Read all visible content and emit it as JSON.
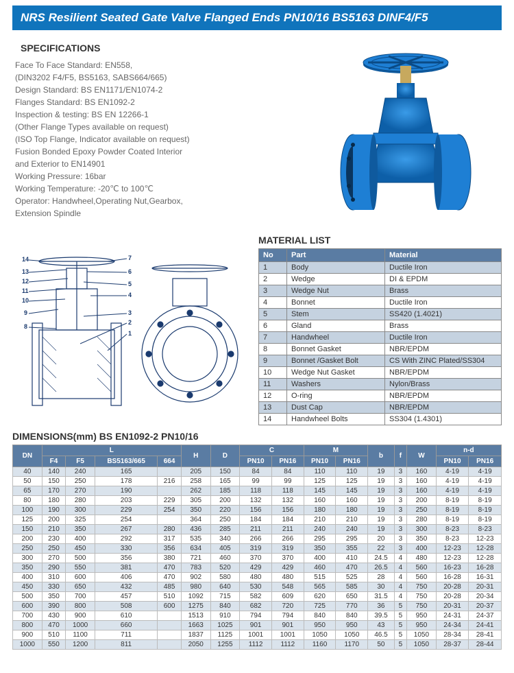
{
  "title": "NRS Resilient Seated Gate Valve Flanged Ends PN10/16 BS5163 DINF4/F5",
  "specs_heading": "SPECIFICATIONS",
  "specs_lines": [
    "Face To Face Standard: EN558,",
    "(DIN3202 F4/F5, BS5163, SABS664/665)",
    "Design Standard: BS EN1171/EN1074-2",
    "Flanges Standard: BS EN1092-2",
    "Inspection & testing: BS EN 12266-1",
    "(Other Flange Types available on request)",
    "(ISO Top Flange, Indicator available on request)",
    "Fusion Bonded Epoxy Powder Coated Interior",
    "and Exterior to EN14901",
    "Working Pressure:  16bar",
    "Working Temperature:  -20℃ to 100℃",
    "Operator:  Handwheel,Operating Nut,Gearbox,",
    "Extension Spindle"
  ],
  "material_heading": "MATERIAL LIST",
  "material_cols": [
    "No",
    "Part",
    "Material"
  ],
  "material_rows": [
    [
      "1",
      "Body",
      "Ductile Iron"
    ],
    [
      "2",
      "Wedge",
      "DI & EPDM"
    ],
    [
      "3",
      "Wedge Nut",
      "Brass"
    ],
    [
      "4",
      "Bonnet",
      "Ductile Iron"
    ],
    [
      "5",
      "Stem",
      "SS420  (1.4021)"
    ],
    [
      "6",
      "Gland",
      "Brass"
    ],
    [
      "7",
      "Handwheel",
      "Ductile Iron"
    ],
    [
      "8",
      "Bonnet Gasket",
      "NBR/EPDM"
    ],
    [
      "9",
      "Bonnet /Gasket Bolt",
      "CS With ZINC Plated/SS304"
    ],
    [
      "10",
      "Wedge Nut Gasket",
      "NBR/EPDM"
    ],
    [
      "11",
      "Washers",
      "Nylon/Brass"
    ],
    [
      "12",
      "O-ring",
      "NBR/EPDM"
    ],
    [
      "13",
      "Dust Cap",
      "NBR/EPDM"
    ],
    [
      "14",
      "Handwheel Bolts",
      "SS304  (1.4301)"
    ]
  ],
  "dims_heading": "DIMENSIONS(mm) BS EN1092-2 PN10/16",
  "dim_head1": [
    "DN",
    "L",
    "",
    "",
    "",
    "H",
    "D",
    "C",
    "",
    "M",
    "",
    "b",
    "f",
    "W",
    "n-d",
    ""
  ],
  "dim_head2": [
    "",
    "F4",
    "F5",
    "BS5163/665",
    "664",
    "",
    "",
    "PN10",
    "PN16",
    "PN10",
    "PN16",
    "",
    "",
    "",
    "PN10",
    "PN16"
  ],
  "dim_rows": [
    [
      "40",
      "140",
      "240",
      "165",
      "",
      "205",
      "150",
      "84",
      "84",
      "110",
      "110",
      "19",
      "3",
      "160",
      "4-19",
      "4-19"
    ],
    [
      "50",
      "150",
      "250",
      "178",
      "216",
      "258",
      "165",
      "99",
      "99",
      "125",
      "125",
      "19",
      "3",
      "160",
      "4-19",
      "4-19"
    ],
    [
      "65",
      "170",
      "270",
      "190",
      "",
      "262",
      "185",
      "118",
      "118",
      "145",
      "145",
      "19",
      "3",
      "160",
      "4-19",
      "4-19"
    ],
    [
      "80",
      "180",
      "280",
      "203",
      "229",
      "305",
      "200",
      "132",
      "132",
      "160",
      "160",
      "19",
      "3",
      "200",
      "8-19",
      "8-19"
    ],
    [
      "100",
      "190",
      "300",
      "229",
      "254",
      "350",
      "220",
      "156",
      "156",
      "180",
      "180",
      "19",
      "3",
      "250",
      "8-19",
      "8-19"
    ],
    [
      "125",
      "200",
      "325",
      "254",
      "",
      "364",
      "250",
      "184",
      "184",
      "210",
      "210",
      "19",
      "3",
      "280",
      "8-19",
      "8-19"
    ],
    [
      "150",
      "210",
      "350",
      "267",
      "280",
      "436",
      "285",
      "211",
      "211",
      "240",
      "240",
      "19",
      "3",
      "300",
      "8-23",
      "8-23"
    ],
    [
      "200",
      "230",
      "400",
      "292",
      "317",
      "535",
      "340",
      "266",
      "266",
      "295",
      "295",
      "20",
      "3",
      "350",
      "8-23",
      "12-23"
    ],
    [
      "250",
      "250",
      "450",
      "330",
      "356",
      "634",
      "405",
      "319",
      "319",
      "350",
      "355",
      "22",
      "3",
      "400",
      "12-23",
      "12-28"
    ],
    [
      "300",
      "270",
      "500",
      "356",
      "380",
      "721",
      "460",
      "370",
      "370",
      "400",
      "410",
      "24.5",
      "4",
      "480",
      "12-23",
      "12-28"
    ],
    [
      "350",
      "290",
      "550",
      "381",
      "470",
      "783",
      "520",
      "429",
      "429",
      "460",
      "470",
      "26.5",
      "4",
      "560",
      "16-23",
      "16-28"
    ],
    [
      "400",
      "310",
      "600",
      "406",
      "470",
      "902",
      "580",
      "480",
      "480",
      "515",
      "525",
      "28",
      "4",
      "560",
      "16-28",
      "16-31"
    ],
    [
      "450",
      "330",
      "650",
      "432",
      "485",
      "980",
      "640",
      "530",
      "548",
      "565",
      "585",
      "30",
      "4",
      "750",
      "20-28",
      "20-31"
    ],
    [
      "500",
      "350",
      "700",
      "457",
      "510",
      "1092",
      "715",
      "582",
      "609",
      "620",
      "650",
      "31.5",
      "4",
      "750",
      "20-28",
      "20-34"
    ],
    [
      "600",
      "390",
      "800",
      "508",
      "600",
      "1275",
      "840",
      "682",
      "720",
      "725",
      "770",
      "36",
      "5",
      "750",
      "20-31",
      "20-37"
    ],
    [
      "700",
      "430",
      "900",
      "610",
      "",
      "1513",
      "910",
      "794",
      "794",
      "840",
      "840",
      "39.5",
      "5",
      "950",
      "24-31",
      "24-37"
    ],
    [
      "800",
      "470",
      "1000",
      "660",
      "",
      "1663",
      "1025",
      "901",
      "901",
      "950",
      "950",
      "43",
      "5",
      "950",
      "24-34",
      "24-41"
    ],
    [
      "900",
      "510",
      "1100",
      "711",
      "",
      "1837",
      "1125",
      "1001",
      "1001",
      "1050",
      "1050",
      "46.5",
      "5",
      "1050",
      "28-34",
      "28-41"
    ],
    [
      "1000",
      "550",
      "1200",
      "811",
      "",
      "2050",
      "1255",
      "1112",
      "1112",
      "1160",
      "1170",
      "50",
      "5",
      "1050",
      "28-37",
      "28-44"
    ]
  ],
  "valve_color": "#1e7fd4",
  "valve_dark": "#0f5a9e",
  "drawing_stroke": "#1a3a6e",
  "header_bg": "#5a7ca3",
  "row_alt": "#c5d2e0"
}
